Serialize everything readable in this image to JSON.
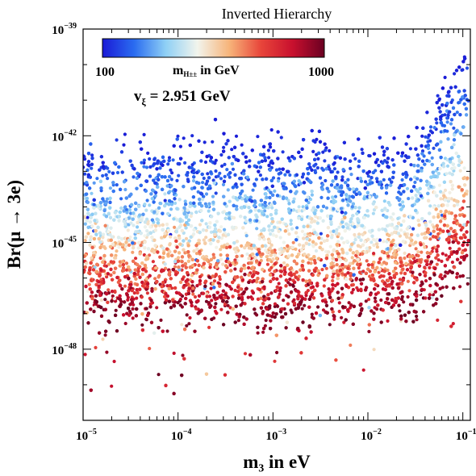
{
  "chart_data": {
    "type": "scatter",
    "title": "Inverted Hierarchy",
    "xlabel": "m₃ in eV",
    "ylabel": "Br(μ → 3e)",
    "x_scale": "log",
    "y_scale": "log",
    "xlim": [
      1e-05,
      0.12
    ],
    "ylim": [
      1e-50,
      1e-39
    ],
    "x_ticks": [
      {
        "base": "10",
        "exp": "−5",
        "value": 1e-05
      },
      {
        "base": "10",
        "exp": "−4",
        "value": 0.0001
      },
      {
        "base": "10",
        "exp": "−3",
        "value": 0.001
      },
      {
        "base": "10",
        "exp": "−2",
        "value": 0.01
      },
      {
        "base": "10",
        "exp": "−1",
        "value": 0.1
      }
    ],
    "y_ticks": [
      {
        "base": "10",
        "exp": "−39",
        "value": 1e-39
      },
      {
        "base": "10",
        "exp": "−42",
        "value": 1e-42
      },
      {
        "base": "10",
        "exp": "−45",
        "value": 1e-45
      },
      {
        "base": "10",
        "exp": "−48",
        "value": 1e-48
      }
    ],
    "colorbar": {
      "label": "m",
      "label_sub": "H±±",
      "label_rest": " in GeV",
      "min_label": "100",
      "max_label": "1000",
      "range": [
        100,
        1000
      ],
      "colors": [
        "#1a1ad6",
        "#2a6cf0",
        "#8fd0f5",
        "#f2f4ec",
        "#f7b47a",
        "#e8453a",
        "#c8102e",
        "#6a0022"
      ]
    },
    "annotation": {
      "text": "v",
      "sub": "ξ",
      "rest": " = 2.951 GeV"
    },
    "point_count": 9000,
    "grid": false,
    "legend": "none"
  }
}
